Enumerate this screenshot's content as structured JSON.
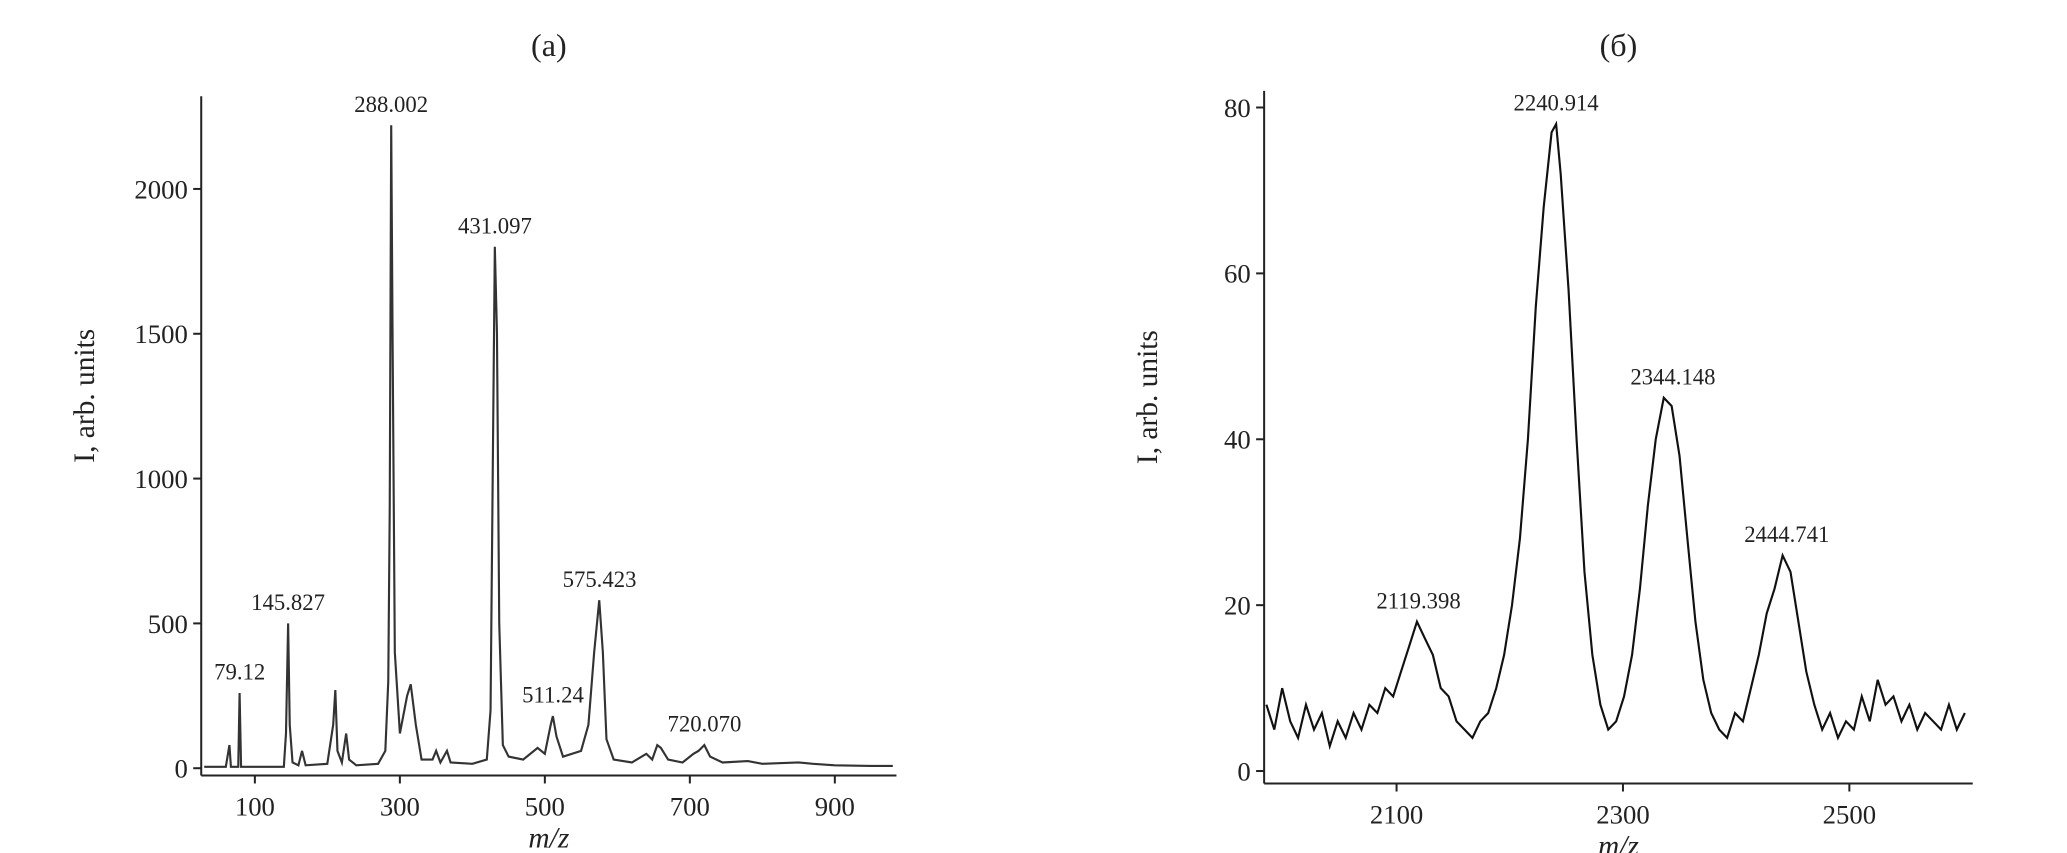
{
  "chart_data": [
    {
      "type": "line",
      "title": "(а)",
      "xlabel": "m/z",
      "ylabel": "I, arb. units",
      "color": "#333333",
      "xlim": [
        26,
        985
      ],
      "ylim": [
        -25,
        2320
      ],
      "xticks": [
        100,
        300,
        500,
        700,
        900
      ],
      "yticks": [
        0,
        500,
        1000,
        1500,
        2000
      ],
      "x": [
        30,
        60,
        65,
        67,
        77,
        79,
        81,
        100,
        140,
        143,
        145.8,
        148,
        152,
        160,
        165,
        170,
        200,
        208,
        211,
        214,
        220,
        226,
        230,
        240,
        270,
        280,
        284,
        286,
        288,
        290,
        293,
        300,
        310,
        315,
        322,
        330,
        345,
        350,
        356,
        365,
        370,
        400,
        420,
        425,
        428,
        431,
        434,
        437,
        442,
        450,
        470,
        490,
        500,
        508,
        511,
        516,
        525,
        550,
        560,
        568,
        575,
        580,
        585,
        595,
        620,
        640,
        648,
        655,
        660,
        670,
        690,
        705,
        712,
        720,
        728,
        745,
        780,
        800,
        850,
        870,
        900,
        950,
        980
      ],
      "values": [
        5,
        5,
        80,
        5,
        5,
        260,
        5,
        5,
        5,
        120,
        500,
        150,
        20,
        10,
        60,
        10,
        15,
        150,
        270,
        60,
        20,
        120,
        30,
        10,
        15,
        60,
        300,
        900,
        2220,
        1500,
        400,
        120,
        250,
        290,
        150,
        30,
        30,
        60,
        20,
        60,
        20,
        15,
        30,
        200,
        1000,
        1800,
        1500,
        500,
        80,
        40,
        30,
        70,
        50,
        150,
        180,
        110,
        40,
        60,
        150,
        400,
        580,
        400,
        100,
        30,
        20,
        50,
        30,
        80,
        70,
        30,
        20,
        50,
        60,
        80,
        40,
        20,
        25,
        15,
        20,
        15,
        10,
        8,
        8
      ],
      "annotations": [
        {
          "text": "79.12",
          "x": 79.12,
          "y": 260
        },
        {
          "text": "145.827",
          "x": 145.827,
          "y": 500
        },
        {
          "text": "288.002",
          "x": 288.002,
          "y": 2220
        },
        {
          "text": "431.097",
          "x": 431.097,
          "y": 1800
        },
        {
          "text": "511.24",
          "x": 511.24,
          "y": 180
        },
        {
          "text": "575.423",
          "x": 575.423,
          "y": 580
        },
        {
          "text": "720.070",
          "x": 720.07,
          "y": 80
        }
      ]
    },
    {
      "type": "line",
      "title": "(б)",
      "xlabel": "m/z",
      "ylabel": "I, arb. units",
      "color": "#111111",
      "xlim": [
        1983,
        2609
      ],
      "ylim": [
        -1.5,
        82
      ],
      "xticks": [
        2100,
        2300,
        2500
      ],
      "yticks": [
        0,
        20,
        40,
        60,
        80
      ],
      "x": [
        1985,
        1992,
        1999,
        2006,
        2013,
        2020,
        2027,
        2034,
        2041,
        2048,
        2055,
        2062,
        2069,
        2076,
        2083,
        2090,
        2097,
        2104,
        2111,
        2118,
        2125,
        2132,
        2139,
        2146,
        2153,
        2160,
        2167,
        2174,
        2181,
        2188,
        2195,
        2202,
        2209,
        2216,
        2223,
        2230,
        2237,
        2241,
        2245,
        2252,
        2259,
        2266,
        2273,
        2280,
        2287,
        2294,
        2301,
        2308,
        2315,
        2322,
        2329,
        2336,
        2343,
        2350,
        2357,
        2364,
        2371,
        2378,
        2385,
        2392,
        2399,
        2406,
        2413,
        2420,
        2427,
        2434,
        2441,
        2448,
        2455,
        2462,
        2469,
        2476,
        2483,
        2490,
        2497,
        2504,
        2511,
        2518,
        2525,
        2532,
        2539,
        2546,
        2553,
        2560,
        2567,
        2574,
        2581,
        2588,
        2595,
        2602
      ],
      "values": [
        8,
        5,
        10,
        6,
        4,
        8,
        5,
        7,
        3,
        6,
        4,
        7,
        5,
        8,
        7,
        10,
        9,
        12,
        15,
        18,
        16,
        14,
        10,
        9,
        6,
        5,
        4,
        6,
        7,
        10,
        14,
        20,
        28,
        40,
        56,
        68,
        77,
        78,
        72,
        58,
        40,
        24,
        14,
        8,
        5,
        6,
        9,
        14,
        22,
        32,
        40,
        45,
        44,
        38,
        28,
        18,
        11,
        7,
        5,
        4,
        7,
        6,
        10,
        14,
        19,
        22,
        26,
        24,
        18,
        12,
        8,
        5,
        7,
        4,
        6,
        5,
        9,
        6,
        11,
        8,
        9,
        6,
        8,
        5,
        7,
        6,
        5,
        8,
        5,
        7
      ],
      "annotations": [
        {
          "text": "2119.398",
          "x": 2119.398,
          "y": 18
        },
        {
          "text": "2240.914",
          "x": 2240.914,
          "y": 78
        },
        {
          "text": "2344.148",
          "x": 2344.148,
          "y": 45
        },
        {
          "text": "2444.741",
          "x": 2444.741,
          "y": 26
        }
      ]
    }
  ]
}
